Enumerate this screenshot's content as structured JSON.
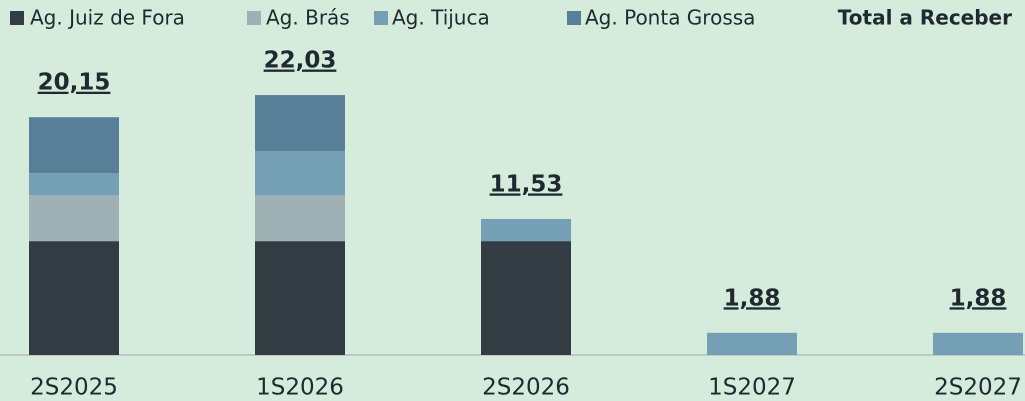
{
  "chart_data": {
    "type": "stacked_bar",
    "categories": [
      "2S2025",
      "1S2026",
      "2S2026",
      "1S2027",
      "2S2027"
    ],
    "series": [
      {
        "name": "Ag. Juiz de Fora",
        "color": "#323c42",
        "values": [
          9.65,
          9.65,
          9.65,
          0,
          0
        ]
      },
      {
        "name": "Ag. Brás",
        "color": "#9fb1b5",
        "values": [
          3.9,
          3.9,
          0,
          0,
          0
        ]
      },
      {
        "name": "Ag. Tijuca",
        "color": "#749fb5",
        "values": [
          1.86,
          3.73,
          1.88,
          1.88,
          1.88
        ]
      },
      {
        "name": "Ag. Ponta Grossa",
        "color": "#577f97",
        "values": [
          4.74,
          4.75,
          0,
          0,
          0
        ]
      }
    ],
    "totals": {
      "name": "Total a Receber",
      "values": [
        20.15,
        22.03,
        11.53,
        1.88,
        1.88
      ],
      "value_labels": [
        "20,15",
        "22,03",
        "11,53",
        "1,88",
        "1,88"
      ]
    },
    "ylim": [
      0,
      25
    ]
  }
}
